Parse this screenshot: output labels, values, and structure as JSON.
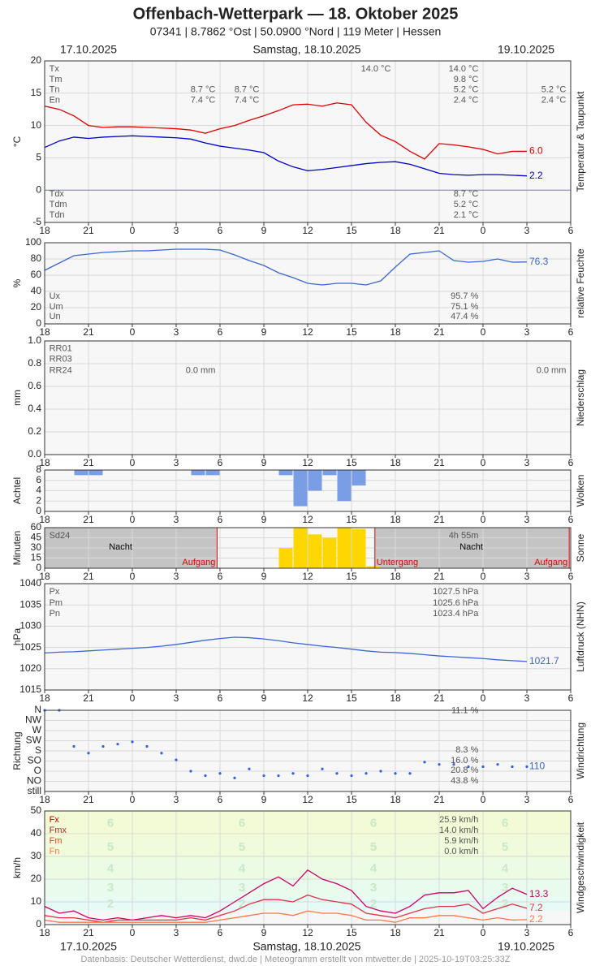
{
  "header": {
    "title": "Offenbach-Wetterpark  —  18. Oktober 2025",
    "subtitle": "07341  |  8.7862 °Ost  |  50.0900 °Nord  |  119 Meter  |  Hessen",
    "dates": [
      "17.10.2025",
      "Samstag, 18.10.2025",
      "19.10.2025"
    ],
    "footer": "Datenbasis: Deutscher Wetterdienst, dwd.de | Meteogramm erstellt von mtwetter.de | 2025-10-19T03:25:33Z"
  },
  "x_axis": {
    "xlim": [
      0,
      36
    ],
    "xticks": [
      {
        "value": 0,
        "label": "18"
      },
      {
        "value": 3,
        "label": "21"
      },
      {
        "value": 6,
        "label": "0"
      },
      {
        "value": 9,
        "label": "3"
      },
      {
        "value": 12,
        "label": "6"
      },
      {
        "value": 15,
        "label": "9"
      },
      {
        "value": 18,
        "label": "12"
      },
      {
        "value": 21,
        "label": "15"
      },
      {
        "value": 24,
        "label": "18"
      },
      {
        "value": 27,
        "label": "21"
      },
      {
        "value": 30,
        "label": "0"
      },
      {
        "value": 33,
        "label": "3"
      },
      {
        "value": 36,
        "label": "6"
      }
    ],
    "x": [
      0,
      1,
      2,
      3,
      4,
      5,
      6,
      7,
      8,
      9,
      10,
      11,
      12,
      13,
      14,
      15,
      16,
      17,
      18,
      19,
      20,
      21,
      22,
      23,
      24,
      25,
      26,
      27,
      28,
      29,
      30,
      31,
      32,
      33
    ]
  },
  "chart_data": [
    {
      "type": "line",
      "ylabel": "°C",
      "side_label": "Temperatur & Taupunkt",
      "ylim": [
        -5,
        20
      ],
      "yticks": [
        -5,
        0,
        5,
        10,
        15,
        20
      ],
      "series": [
        {
          "color": "#e00000",
          "end_label": "6.0",
          "values": [
            13,
            12.5,
            11.5,
            10,
            9.7,
            9.8,
            9.8,
            9.7,
            9.6,
            9.5,
            9.3,
            8.8,
            9.5,
            10,
            10.8,
            11.5,
            12.3,
            13.2,
            13.3,
            13,
            13.5,
            13.2,
            10.5,
            8.5,
            7.5,
            6.0,
            4.8,
            7.2,
            7.0,
            6.7,
            6.3,
            5.6,
            6.0,
            6.0
          ]
        },
        {
          "color": "#0000cc",
          "end_label": "2.2",
          "values": [
            6.6,
            7.6,
            8.2,
            8.0,
            8.2,
            8.3,
            8.4,
            8.3,
            8.2,
            8.1,
            7.9,
            7.3,
            6.8,
            6.5,
            6.2,
            5.8,
            4.5,
            3.6,
            3.0,
            3.2,
            3.5,
            3.8,
            4.1,
            4.3,
            4.4,
            4.0,
            3.3,
            2.6,
            2.4,
            2.3,
            2.4,
            2.4,
            2.3,
            2.2
          ]
        }
      ],
      "notes": [
        {
          "x": 0.2,
          "y": 18.75,
          "text": "Tx",
          "align": "start"
        },
        {
          "x": 0.2,
          "y": 17.1,
          "text": "Tm",
          "align": "start"
        },
        {
          "x": 0.2,
          "y": 15.5,
          "text": "Tn",
          "align": "start"
        },
        {
          "x": 0.2,
          "y": 13.9,
          "text": "En",
          "align": "start"
        },
        {
          "x": 23.8,
          "y": 18.75,
          "text": "14.0 °C"
        },
        {
          "x": 29.8,
          "y": 18.75,
          "text": "14.0 °C"
        },
        {
          "x": 29.8,
          "y": 17.1,
          "text": "9.8 °C"
        },
        {
          "x": 29.8,
          "y": 15.5,
          "text": "5.2 °C"
        },
        {
          "x": 29.8,
          "y": 13.9,
          "text": "2.4 °C"
        },
        {
          "x": 11.8,
          "y": 15.5,
          "text": "8.7 °C"
        },
        {
          "x": 11.8,
          "y": 13.9,
          "text": "7.4 °C"
        },
        {
          "x": 14.8,
          "y": 15.5,
          "text": "8.7 °C"
        },
        {
          "x": 14.8,
          "y": 13.9,
          "text": "7.4 °C"
        },
        {
          "x": 35.8,
          "y": 15.5,
          "text": "5.2 °C"
        },
        {
          "x": 35.8,
          "y": 13.9,
          "text": "2.4 °C"
        },
        {
          "x": 0.2,
          "y": -0.6,
          "text": "Tdx",
          "align": "start"
        },
        {
          "x": 0.2,
          "y": -2.25,
          "text": "Tdm",
          "align": "start"
        },
        {
          "x": 0.2,
          "y": -3.9,
          "text": "Tdn",
          "align": "start"
        },
        {
          "x": 29.8,
          "y": -0.6,
          "text": "8.7 °C"
        },
        {
          "x": 29.8,
          "y": -2.25,
          "text": "5.2 °C"
        },
        {
          "x": 29.8,
          "y": -3.9,
          "text": "2.1 °C"
        }
      ]
    },
    {
      "type": "line",
      "ylabel": "%",
      "side_label": "relative Feuchte",
      "ylim": [
        0,
        100
      ],
      "yticks": [
        0,
        20,
        40,
        60,
        80,
        100
      ],
      "series": [
        {
          "color": "#3a66d6",
          "end_label": "76.3",
          "values": [
            66,
            75,
            84,
            86,
            88,
            89,
            90,
            90,
            91,
            92,
            92,
            92,
            91,
            85,
            78,
            72,
            63,
            57,
            50,
            48,
            50,
            50,
            48,
            53,
            70,
            86,
            88,
            90,
            78,
            76,
            77,
            80,
            76,
            76.3
          ]
        }
      ],
      "notes": [
        {
          "x": 0.2,
          "y": 34,
          "text": "Ux",
          "align": "start"
        },
        {
          "x": 0.2,
          "y": 21,
          "text": "Um",
          "align": "start"
        },
        {
          "x": 0.2,
          "y": 9,
          "text": "Un",
          "align": "start"
        },
        {
          "x": 29.8,
          "y": 34,
          "text": "95.7 %"
        },
        {
          "x": 29.8,
          "y": 21,
          "text": "75.1 %"
        },
        {
          "x": 29.8,
          "y": 9,
          "text": "47.4 %"
        }
      ]
    },
    {
      "type": "bar",
      "ylabel": "mm",
      "side_label": "Niederschlag",
      "ylim": [
        0,
        1
      ],
      "yticks": [
        {
          "value": 0,
          "label": "0.0"
        },
        0.2,
        0.4,
        0.6,
        0.8,
        {
          "value": 1,
          "label": "1.0"
        }
      ],
      "color": "#3a66d6",
      "values": [
        0,
        0,
        0,
        0,
        0,
        0,
        0,
        0,
        0,
        0,
        0,
        0,
        0,
        0,
        0,
        0,
        0,
        0,
        0,
        0,
        0,
        0,
        0,
        0,
        0,
        0,
        0,
        0,
        0,
        0,
        0,
        0,
        0,
        0
      ],
      "notes": [
        {
          "x": 0.2,
          "y": 0.93,
          "text": "RR01",
          "align": "start"
        },
        {
          "x": 0.2,
          "y": 0.84,
          "text": "RR03",
          "align": "start"
        },
        {
          "x": 0.2,
          "y": 0.74,
          "text": "RR24",
          "align": "start"
        },
        {
          "x": 11.8,
          "y": 0.74,
          "text": "0.0 mm"
        },
        {
          "x": 35.8,
          "y": 0.74,
          "text": "0.0 mm"
        }
      ]
    },
    {
      "type": "bar",
      "ylabel": "Achtel",
      "side_label": "Wolken",
      "ylim": [
        0,
        8
      ],
      "yticks": [
        0,
        2,
        4,
        6,
        8
      ],
      "color": "#7a9ee6",
      "from_top": true,
      "values": [
        0,
        0,
        1,
        1,
        0,
        0,
        0,
        0,
        0,
        0,
        1,
        1,
        0,
        0,
        0,
        0,
        1,
        7,
        4,
        1,
        6,
        3,
        0,
        0,
        0,
        0,
        0,
        0,
        0,
        0,
        0,
        0,
        0,
        0
      ]
    },
    {
      "type": "bar",
      "ylabel": "Minuten",
      "side_label": "Sonne",
      "ylim": [
        0,
        60
      ],
      "yticks": [
        0,
        15,
        30,
        45,
        60
      ],
      "color": "#ffd700",
      "values": [
        0,
        0,
        0,
        0,
        0,
        0,
        0,
        0,
        0,
        0,
        0,
        0,
        0,
        0,
        0,
        0,
        30,
        60,
        50,
        45,
        60,
        58,
        3,
        0,
        0,
        0,
        0,
        0,
        0,
        0,
        0,
        0,
        0,
        0
      ],
      "notes": [
        {
          "x": 0.2,
          "y": 48,
          "text": "Sd24",
          "align": "start"
        },
        {
          "x": 29.8,
          "y": 48,
          "text": "4h 55m"
        },
        {
          "x": 5.2,
          "y": 31,
          "text": "Nacht",
          "align": "middle",
          "color": "#000"
        },
        {
          "x": 29.2,
          "y": 31,
          "text": "Nacht",
          "align": "middle",
          "color": "#000"
        },
        {
          "x": 11.8,
          "y": 8,
          "text": "Aufgang",
          "color": "#e00000",
          "line": true
        },
        {
          "x": 22.6,
          "y": 8,
          "text": "Untergang",
          "align": "start",
          "color": "#e00000",
          "line": true
        },
        {
          "x": 35.9,
          "y": 8,
          "text": "Aufgang",
          "color": "#e00000",
          "line": true
        }
      ]
    },
    {
      "type": "line",
      "ylabel": "hPa",
      "side_label": "Luftdruck (NHN)",
      "ylim": [
        1015,
        1040
      ],
      "yticks": [
        1015,
        1020,
        1025,
        1030,
        1035,
        1040
      ],
      "series": [
        {
          "color": "#3a66d6",
          "end_label": "1021.7",
          "values": [
            1023.7,
            1023.9,
            1024.0,
            1024.2,
            1024.4,
            1024.6,
            1024.8,
            1025.0,
            1025.3,
            1025.7,
            1026.2,
            1026.7,
            1027.1,
            1027.4,
            1027.3,
            1027.0,
            1026.6,
            1026.1,
            1025.7,
            1025.3,
            1025.0,
            1024.6,
            1024.2,
            1023.9,
            1023.8,
            1023.6,
            1023.3,
            1023.0,
            1022.8,
            1022.6,
            1022.4,
            1022.1,
            1021.9,
            1021.7
          ]
        }
      ],
      "notes": [
        {
          "x": 0.2,
          "y": 1038.1,
          "text": "Px",
          "align": "start"
        },
        {
          "x": 0.2,
          "y": 1035.4,
          "text": "Pm",
          "align": "start"
        },
        {
          "x": 0.2,
          "y": 1032.9,
          "text": "Pn",
          "align": "start"
        },
        {
          "x": 29.8,
          "y": 1038.1,
          "text": "1027.5 hPa"
        },
        {
          "x": 29.8,
          "y": 1035.4,
          "text": "1025.6 hPa"
        },
        {
          "x": 29.8,
          "y": 1032.9,
          "text": "1023.4 hPa"
        }
      ]
    },
    {
      "type": "scatter",
      "ylabel": "Richtung",
      "side_label": "Windrichtung",
      "ylim": [
        0,
        360
      ],
      "yticks": [
        {
          "value": 0,
          "label": "still"
        },
        {
          "value": 45,
          "label": "NO"
        },
        {
          "value": 90,
          "label": "O"
        },
        {
          "value": 135,
          "label": "SO"
        },
        {
          "value": 180,
          "label": "S"
        },
        {
          "value": 225,
          "label": "SW"
        },
        {
          "value": 270,
          "label": "W"
        },
        {
          "value": 315,
          "label": "NW"
        },
        {
          "value": 360,
          "label": "N"
        }
      ],
      "series": [
        {
          "color": "#3060e0",
          "end_label": "110",
          "values": [
            360,
            360,
            200,
            170,
            200,
            210,
            220,
            200,
            170,
            140,
            90,
            70,
            80,
            60,
            100,
            70,
            70,
            80,
            70,
            100,
            80,
            70,
            80,
            90,
            80,
            80,
            130,
            120,
            120,
            110,
            110,
            120,
            110,
            110
          ]
        }
      ],
      "notes": [
        {
          "x": 29.8,
          "y": 358,
          "text": "11.1 %"
        },
        {
          "x": 29.8,
          "y": 183.6,
          "text": "8.3 %"
        },
        {
          "x": 29.8,
          "y": 136.8,
          "text": "16.0 %"
        },
        {
          "x": 29.8,
          "y": 93.6,
          "text": "20.8 %"
        },
        {
          "x": 29.8,
          "y": 46.8,
          "text": "43.8 %"
        }
      ]
    },
    {
      "type": "line",
      "ylabel": "km/h",
      "side_label": "Windgeschwindigkeit",
      "ylim": [
        0,
        50
      ],
      "yticks": [
        0,
        10,
        20,
        30,
        40,
        50
      ],
      "bands": [
        {
          "label": "2",
          "range": [
            6,
            12
          ]
        },
        {
          "label": "3",
          "range": [
            12,
            20
          ]
        },
        {
          "label": "4",
          "range": [
            20,
            29
          ]
        },
        {
          "label": "5",
          "range": [
            29,
            39
          ]
        },
        {
          "label": "6",
          "range": [
            39,
            50
          ]
        }
      ],
      "series": [
        {
          "color": "#cc0066",
          "end_label": "13.3",
          "values": [
            8,
            5,
            6,
            3,
            2,
            3,
            2,
            3,
            4,
            3,
            4,
            3,
            6,
            10,
            14,
            18,
            21,
            17,
            24,
            20,
            18,
            15,
            8,
            6,
            5,
            8,
            13,
            14,
            14,
            15,
            7,
            12,
            16,
            13.3
          ]
        },
        {
          "color": "#dd3344",
          "end_label": "7.2",
          "values": [
            4,
            3,
            3,
            2,
            1,
            2,
            2,
            2,
            2,
            2,
            3,
            2,
            4,
            6,
            9,
            11,
            11,
            10,
            13,
            11,
            10,
            9,
            5,
            4,
            3,
            5,
            7,
            8,
            8,
            9,
            5,
            7,
            9,
            7.2
          ]
        },
        {
          "color": "#ff7744",
          "end_label": "2.2",
          "values": [
            2,
            1,
            1,
            1,
            1,
            1,
            1,
            1,
            1,
            1,
            1,
            1,
            2,
            3,
            4,
            5,
            5,
            4,
            6,
            5,
            5,
            4,
            2,
            2,
            1,
            3,
            3,
            4,
            4,
            3,
            2,
            3,
            2,
            2.2
          ]
        }
      ],
      "notes": [
        {
          "x": 0.2,
          "y": 46.1,
          "text": "Fx",
          "align": "start",
          "color": "#cc0000"
        },
        {
          "x": 0.2,
          "y": 41.4,
          "text": "Fmx",
          "align": "start",
          "color": "#993333"
        },
        {
          "x": 0.2,
          "y": 36.8,
          "text": "Fm",
          "align": "start",
          "color": "#ee4422"
        },
        {
          "x": 0.2,
          "y": 32.1,
          "text": "Fn",
          "align": "start",
          "color": "#ff7744"
        },
        {
          "x": 29.8,
          "y": 46.1,
          "text": "25.9 km/h"
        },
        {
          "x": 29.8,
          "y": 41.4,
          "text": "14.0 km/h"
        },
        {
          "x": 29.8,
          "y": 36.8,
          "text": "5.9 km/h"
        },
        {
          "x": 29.8,
          "y": 32.1,
          "text": "0.0 km/h"
        }
      ]
    }
  ]
}
